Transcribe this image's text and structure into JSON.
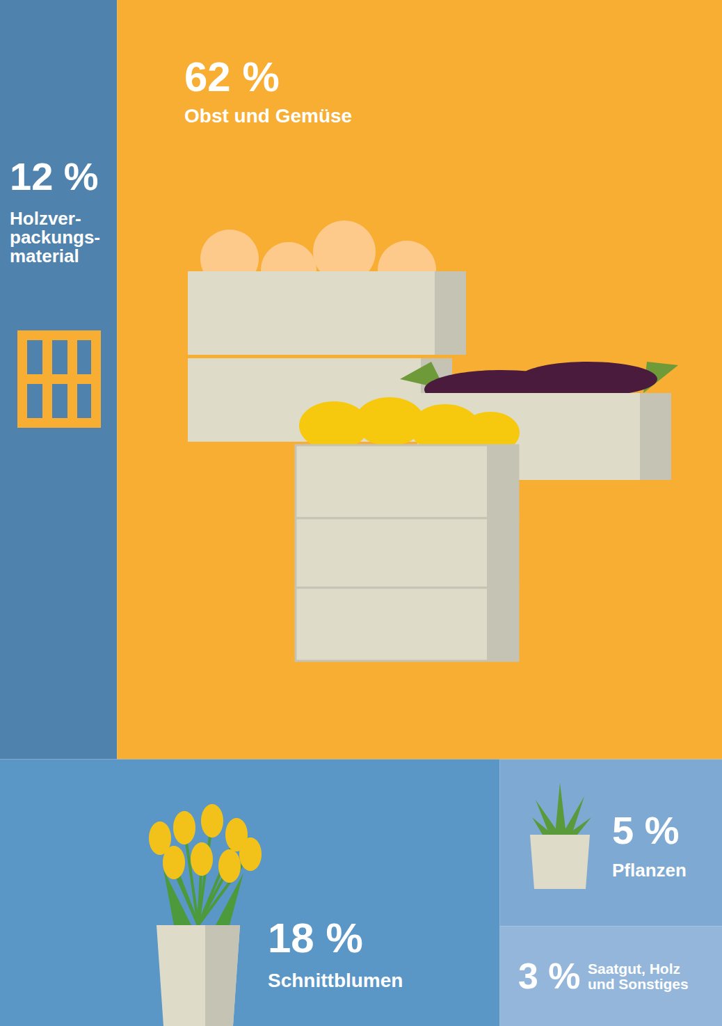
{
  "chart_data": {
    "type": "treemap",
    "categories": [
      "Holzver-packungs-material",
      "Obst und Gemüse",
      "Schnittblumen",
      "Pflanzen",
      "Saatgut, Holz und Sonstiges"
    ],
    "values": [
      12,
      62,
      18,
      5,
      3
    ],
    "value_labels": [
      "12 %",
      "62 %",
      "18 %",
      "5 %",
      "3 %"
    ],
    "colors": [
      "#4f83ad",
      "#f8ae33",
      "#5a97c6",
      "#7ea9d2",
      "#93b6da"
    ],
    "data_labels": true
  }
}
